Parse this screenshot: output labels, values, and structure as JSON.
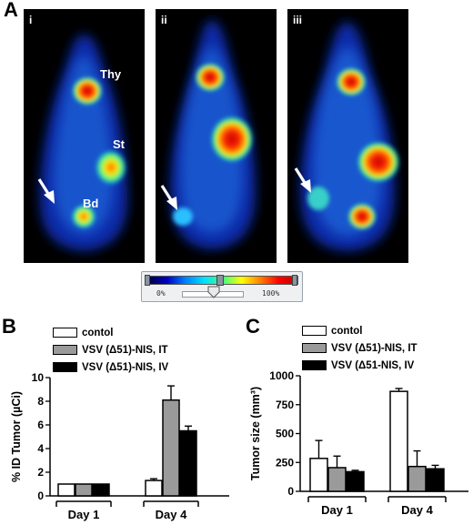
{
  "figure": {
    "panel_a": {
      "letter": "A",
      "images": [
        {
          "numeral": "i",
          "labels": [
            "Thy",
            "St",
            "Bd"
          ]
        },
        {
          "numeral": "ii",
          "labels": []
        },
        {
          "numeral": "iii",
          "labels": []
        }
      ],
      "colorbar": {
        "min_label": "0%",
        "max_label": "100%"
      },
      "colors": {
        "cold": "#000078",
        "mid": "#00b4ff",
        "warm": "#ffff00",
        "hot": "#dc0000"
      }
    },
    "panel_b_letter": "B",
    "panel_c_letter": "C"
  },
  "chart_data": [
    {
      "type": "bar",
      "panel": "B",
      "categories": [
        "Day 1",
        "Day 4"
      ],
      "ylabel": "% ID Tumor (µCi)",
      "xlabel": "",
      "ylim": [
        0,
        10
      ],
      "yticks": [
        "0",
        "2",
        "4",
        "6",
        "8",
        "10"
      ],
      "series": [
        {
          "name": "contol",
          "color": "#ffffff",
          "values": [
            1.0,
            1.3
          ],
          "errors": [
            0,
            0.15
          ]
        },
        {
          "name": "VSV (Δ51)-NIS, IT",
          "color": "#9a9a9a",
          "values": [
            1.0,
            8.1
          ],
          "errors": [
            0,
            1.2
          ]
        },
        {
          "name": "VSV (Δ51)-NIS, IV",
          "color": "#000000",
          "values": [
            1.0,
            5.5
          ],
          "errors": [
            0,
            0.4
          ]
        }
      ]
    },
    {
      "type": "bar",
      "panel": "C",
      "categories": [
        "Day 1",
        "Day 4"
      ],
      "ylabel": "Tumor size (mm³)",
      "xlabel": "",
      "ylim": [
        0,
        1000
      ],
      "yticks": [
        "0",
        "250",
        "500",
        "750",
        "1000"
      ],
      "series": [
        {
          "name": "contol",
          "color": "#ffffff",
          "values": [
            285,
            865
          ],
          "errors": [
            155,
            25
          ]
        },
        {
          "name": "VSV (Δ51)-NIS, IT",
          "color": "#9a9a9a",
          "values": [
            205,
            215
          ],
          "errors": [
            100,
            135
          ]
        },
        {
          "name": "VSV (Δ51-NIS, IV",
          "color": "#000000",
          "values": [
            170,
            195
          ],
          "errors": [
            12,
            30
          ]
        }
      ]
    }
  ]
}
